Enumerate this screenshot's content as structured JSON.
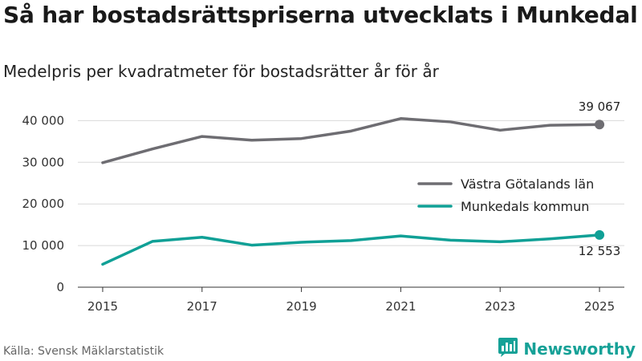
{
  "title": "Så har bostadsrättspriserna utvecklats i Munkedal",
  "subtitle": "Medelpris per kvadratmeter för bostadsrätter år för år",
  "source": "Källa: Svensk Mäklarstatistik",
  "brand": {
    "name": "Newsworthy",
    "icon": "newsworthy-logo-icon",
    "color": "#16a197"
  },
  "chart_data": {
    "type": "line",
    "x": [
      2015,
      2016,
      2017,
      2018,
      2019,
      2020,
      2021,
      2022,
      2023,
      2024,
      2025
    ],
    "xticks": [
      {
        "value": 2015,
        "label": "2015"
      },
      {
        "value": 2017,
        "label": "2017"
      },
      {
        "value": 2019,
        "label": "2019"
      },
      {
        "value": 2021,
        "label": "2021"
      },
      {
        "value": 2023,
        "label": "2023"
      },
      {
        "value": 2025,
        "label": "2025"
      }
    ],
    "yticks": [
      {
        "value": 0,
        "label": "0"
      },
      {
        "value": 10000,
        "label": "10 000"
      },
      {
        "value": 20000,
        "label": "20 000"
      },
      {
        "value": 30000,
        "label": "30 000"
      },
      {
        "value": 40000,
        "label": "40 000"
      }
    ],
    "xlim": [
      2014.5,
      2025.5
    ],
    "ylim": [
      0,
      42000
    ],
    "grid": true,
    "legend_position": "right",
    "series": [
      {
        "name": "Västra Götalands län",
        "color": "#6e6d72",
        "values": [
          29900,
          33200,
          36200,
          35300,
          35700,
          37500,
          40500,
          39700,
          37700,
          38900,
          39067
        ],
        "end_label": "39 067",
        "end_label_position": "above"
      },
      {
        "name": "Munkedals kommun",
        "color": "#10a096",
        "values": [
          5500,
          11000,
          12000,
          10100,
          10800,
          11200,
          12300,
          11300,
          10900,
          11600,
          12553
        ],
        "end_label": "12 553",
        "end_label_position": "below"
      }
    ]
  }
}
